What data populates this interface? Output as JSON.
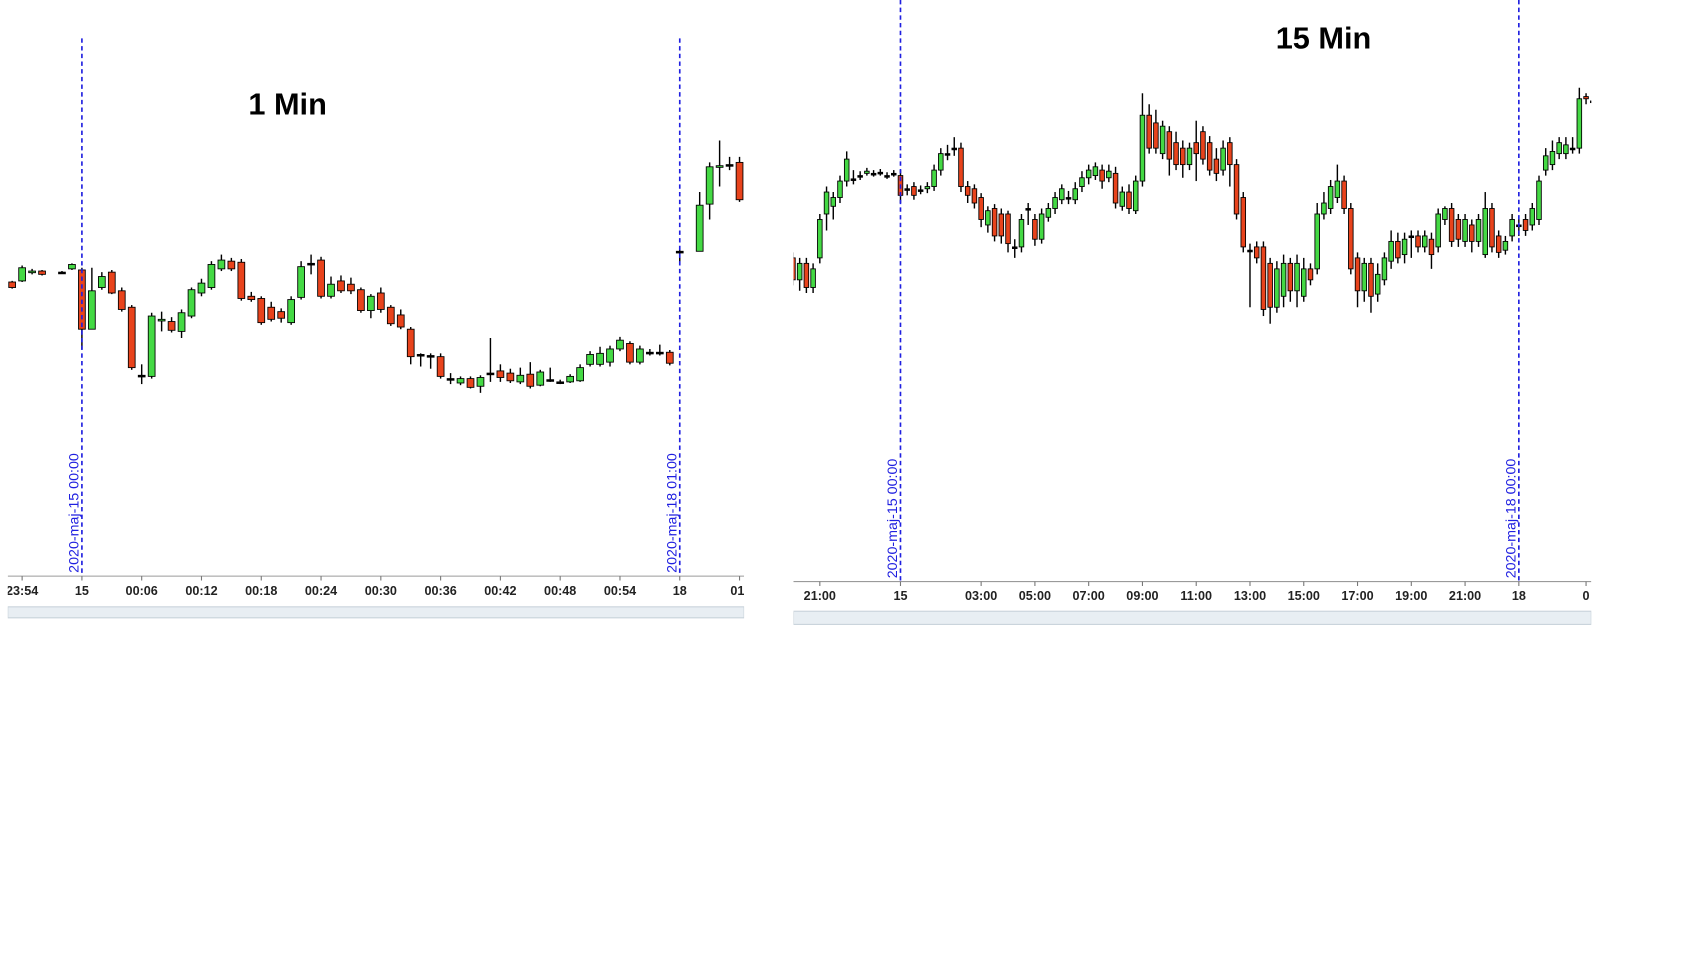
{
  "chart_data": [
    {
      "type": "candlestick",
      "title": "1 Min",
      "open": [
        143,
        144,
        152,
        153,
        null,
        152,
        155,
        154,
        100,
        138,
        152,
        135,
        120,
        58,
        57,
        108,
        107,
        98,
        112,
        133,
        138,
        155,
        162,
        161,
        130,
        128,
        120,
        116,
        106,
        129,
        160,
        163,
        130,
        144,
        141,
        136,
        117,
        133,
        120,
        113,
        100,
        77,
        76,
        75,
        55,
        51,
        55,
        48,
        60,
        62,
        60,
        52,
        59,
        49,
        54,
        52,
        52,
        53,
        68,
        68,
        70,
        82,
        87,
        70,
        79,
        79,
        79,
        171,
        null,
        171,
        214,
        248,
        250,
        252
      ],
      "high": [
        144,
        158,
        155,
        154,
        null,
        153,
        160,
        156,
        156,
        152,
        154,
        138,
        122,
        68,
        115,
        116,
        111,
        118,
        138,
        146,
        162,
        168,
        165,
        164,
        134,
        130,
        125,
        119,
        130,
        162,
        168,
        166,
        148,
        149,
        147,
        138,
        132,
        138,
        122,
        118,
        102,
        78,
        78,
        78,
        60,
        57,
        57,
        58,
        92,
        68,
        64,
        65,
        70,
        63,
        65,
        54,
        59,
        68,
        80,
        84,
        85,
        93,
        89,
        85,
        82,
        86,
        81,
        174,
        null,
        225,
        252,
        272,
        257,
        257
      ],
      "low": [
        137,
        143,
        150,
        149,
        null,
        151,
        154,
        82,
        100,
        136,
        132,
        116,
        63,
        50,
        55,
        98,
        97,
        92,
        110,
        130,
        136,
        153,
        153,
        126,
        125,
        104,
        107,
        106,
        104,
        127,
        150,
        128,
        128,
        133,
        132,
        115,
        110,
        115,
        103,
        100,
        68,
        66,
        64,
        55,
        50,
        49,
        46,
        42,
        52,
        52,
        51,
        50,
        46,
        48,
        52,
        50,
        51,
        52,
        66,
        66,
        66,
        80,
        68,
        68,
        76,
        76,
        67,
        159,
        null,
        171,
        200,
        230,
        245,
        216
      ],
      "close": [
        138,
        156,
        153,
        150,
        null,
        152,
        159,
        100,
        135,
        148,
        133,
        118,
        65,
        58,
        112,
        109,
        99,
        115,
        136,
        142,
        159,
        163,
        155,
        128,
        127,
        106,
        109,
        110,
        127,
        157,
        160,
        130,
        141,
        135,
        135,
        117,
        130,
        118,
        105,
        102,
        75,
        77,
        76,
        57,
        55,
        55,
        47,
        56,
        60,
        56,
        53,
        58,
        48,
        61,
        54,
        52,
        57,
        65,
        77,
        78,
        82,
        90,
        70,
        82,
        79,
        79,
        69,
        171,
        null,
        213,
        248,
        249,
        250,
        218
      ],
      "ylim": [
        -125,
        400
      ],
      "xticks": [
        {
          "value": 1,
          "label": "23:54"
        },
        {
          "value": 7,
          "label": "15"
        },
        {
          "value": 13,
          "label": "00:06"
        },
        {
          "value": 19,
          "label": "00:12"
        },
        {
          "value": 25,
          "label": "00:18"
        },
        {
          "value": 31,
          "label": "00:24"
        },
        {
          "value": 37,
          "label": "00:30"
        },
        {
          "value": 43,
          "label": "00:36"
        },
        {
          "value": 49,
          "label": "00:42"
        },
        {
          "value": 55,
          "label": "00:48"
        },
        {
          "value": 61,
          "label": "00:54"
        },
        {
          "value": 67,
          "label": "18"
        },
        {
          "value": 73,
          "label": "01:"
        }
      ],
      "markers": [
        {
          "value": 7,
          "label": "2020-maj-15 00:00"
        },
        {
          "value": 67,
          "label": "2020-maj-18 01:00"
        }
      ],
      "up_color": "#44d944",
      "down_color": "#e8431c",
      "marker_color": "#1f1fe0"
    },
    {
      "type": "candlestick",
      "title": "15 Min",
      "open": [
        165,
        145,
        160,
        138,
        165,
        205,
        212,
        220,
        235,
        237,
        240,
        242,
        242,
        243,
        240,
        242,
        240,
        228,
        230,
        227,
        228,
        230,
        245,
        260,
        265,
        265,
        230,
        228,
        220,
        195,
        210,
        205,
        205,
        175,
        175,
        210,
        200,
        182,
        202,
        210,
        218,
        220,
        218,
        230,
        238,
        240,
        245,
        238,
        242,
        212,
        225,
        208,
        235,
        295,
        288,
        260,
        280,
        270,
        265,
        250,
        270,
        280,
        270,
        255,
        245,
        270,
        250,
        220,
        172,
        175,
        175,
        160,
        120,
        130,
        160,
        135,
        130,
        155,
        155,
        205,
        210,
        220,
        235,
        210,
        165,
        135,
        160,
        132,
        145,
        162,
        180,
        168,
        185,
        185,
        175,
        182,
        175,
        200,
        210,
        200,
        180,
        195,
        180,
        168,
        210,
        185,
        172,
        185,
        195,
        200,
        195,
        200,
        245,
        250,
        260,
        260,
        265,
        265,
        312,
        308
      ],
      "high": [
        170,
        165,
        165,
        160,
        205,
        230,
        225,
        240,
        262,
        245,
        244,
        247,
        245,
        246,
        243,
        245,
        245,
        232,
        234,
        231,
        234,
        250,
        265,
        268,
        275,
        270,
        235,
        232,
        224,
        212,
        214,
        210,
        208,
        182,
        205,
        215,
        205,
        210,
        215,
        225,
        232,
        226,
        234,
        244,
        250,
        252,
        250,
        250,
        248,
        230,
        232,
        240,
        315,
        305,
        300,
        290,
        285,
        280,
        272,
        270,
        290,
        285,
        276,
        265,
        272,
        275,
        255,
        225,
        178,
        180,
        180,
        165,
        162,
        168,
        165,
        168,
        165,
        160,
        215,
        225,
        236,
        250,
        240,
        215,
        170,
        165,
        165,
        160,
        170,
        190,
        188,
        188,
        190,
        190,
        190,
        188,
        210,
        212,
        215,
        205,
        205,
        200,
        205,
        225,
        215,
        190,
        185,
        205,
        200,
        205,
        215,
        240,
        265,
        272,
        275,
        275,
        275,
        320,
        315,
        312
      ],
      "low": [
        140,
        135,
        133,
        133,
        160,
        190,
        200,
        215,
        230,
        232,
        236,
        240,
        239,
        240,
        237,
        239,
        215,
        222,
        218,
        223,
        224,
        226,
        240,
        254,
        258,
        225,
        215,
        210,
        193,
        188,
        180,
        178,
        170,
        165,
        170,
        195,
        176,
        178,
        198,
        205,
        214,
        214,
        214,
        225,
        232,
        236,
        228,
        234,
        210,
        208,
        205,
        205,
        230,
        260,
        260,
        255,
        240,
        245,
        238,
        245,
        235,
        250,
        240,
        235,
        240,
        230,
        200,
        170,
        120,
        160,
        112,
        105,
        115,
        120,
        125,
        120,
        125,
        140,
        150,
        200,
        205,
        215,
        205,
        150,
        120,
        125,
        115,
        125,
        140,
        155,
        160,
        160,
        165,
        170,
        170,
        155,
        170,
        195,
        175,
        175,
        175,
        170,
        175,
        165,
        170,
        165,
        168,
        180,
        185,
        185,
        190,
        195,
        240,
        245,
        255,
        255,
        260,
        260,
        305,
        304
      ],
      "close": [
        145,
        160,
        138,
        155,
        200,
        225,
        220,
        235,
        255,
        237,
        240,
        244,
        242,
        243,
        240,
        242,
        222,
        228,
        222,
        227,
        230,
        245,
        260,
        260,
        265,
        230,
        222,
        215,
        200,
        208,
        185,
        185,
        178,
        175,
        200,
        210,
        182,
        205,
        210,
        220,
        228,
        220,
        228,
        238,
        245,
        248,
        235,
        244,
        215,
        225,
        210,
        235,
        295,
        265,
        265,
        285,
        255,
        250,
        250,
        265,
        260,
        255,
        245,
        242,
        265,
        250,
        205,
        175,
        172,
        165,
        118,
        120,
        155,
        160,
        135,
        160,
        155,
        145,
        205,
        215,
        230,
        235,
        210,
        155,
        135,
        160,
        130,
        150,
        165,
        180,
        165,
        182,
        185,
        175,
        185,
        168,
        205,
        210,
        180,
        182,
        200,
        180,
        200,
        210,
        175,
        170,
        180,
        200,
        195,
        190,
        210,
        235,
        258,
        262,
        270,
        268,
        265,
        310,
        310,
        308
      ],
      "ylim": [
        -130,
        400
      ],
      "xticks": [
        {
          "value": 4,
          "label": "21:00"
        },
        {
          "value": 16,
          "label": "15"
        },
        {
          "value": 28,
          "label": "03:00"
        },
        {
          "value": 36,
          "label": "05:00"
        },
        {
          "value": 44,
          "label": "07:00"
        },
        {
          "value": 52,
          "label": "09:00"
        },
        {
          "value": 60,
          "label": "11:00"
        },
        {
          "value": 68,
          "label": "13:00"
        },
        {
          "value": 76,
          "label": "15:00"
        },
        {
          "value": 84,
          "label": "17:00"
        },
        {
          "value": 92,
          "label": "19:00"
        },
        {
          "value": 100,
          "label": "21:00"
        },
        {
          "value": 108,
          "label": "18"
        },
        {
          "value": 118,
          "label": "0"
        }
      ],
      "markers": [
        {
          "value": 16,
          "label": "2020-maj-15 00:00"
        },
        {
          "value": 108,
          "label": "2020-maj-18 00:00"
        }
      ],
      "up_color": "#44d944",
      "down_color": "#e8431c",
      "marker_color": "#1f1fe0"
    }
  ]
}
